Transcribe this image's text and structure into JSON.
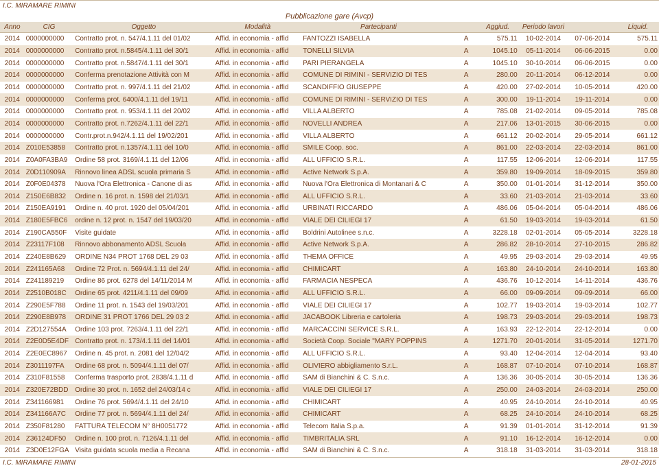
{
  "header": {
    "org": "I.C. MIRAMARE RIMINI",
    "title": "Pubblicazione gare (Avcp)"
  },
  "footer": {
    "left": "I.C. MIRAMARE RIMINI",
    "right": "28-01-2015"
  },
  "cols": [
    {
      "label": "Anno",
      "w": "3.5%",
      "align": "center"
    },
    {
      "label": "CIG",
      "w": "7%",
      "align": "left"
    },
    {
      "label": "Oggetto",
      "w": "20%",
      "align": "left"
    },
    {
      "label": "Modalità",
      "w": "12.5%",
      "align": "left"
    },
    {
      "label": "Partecipanti",
      "w": "22%",
      "align": "left"
    },
    {
      "label": "",
      "w": "3%",
      "align": "center"
    },
    {
      "label": "Aggiud.",
      "w": "6%",
      "align": "right"
    },
    {
      "label": "Periodo lavori",
      "w": "7%",
      "align": "center"
    },
    {
      "label": "",
      "w": "7%",
      "align": "center"
    },
    {
      "label": "Liquid.",
      "w": "6%",
      "align": "right"
    }
  ],
  "rows": [
    [
      "2014",
      "0000000000",
      "Contratto prot. n. 547/4.1.11 del 01/02",
      "Affid. in economia - affid",
      "FANTOZZI ISABELLA",
      "A",
      "575.11",
      "10-02-2014",
      "07-06-2014",
      "575.11"
    ],
    [
      "2014",
      "0000000000",
      "Contratto prot. n.5845/4.1.11 del 30/1",
      "Affid. in economia - affid",
      "TONELLI SILVIA",
      "A",
      "1045.10",
      "05-11-2014",
      "06-06-2015",
      "0.00"
    ],
    [
      "2014",
      "0000000000",
      "Contratto prot. n.5847/4.1.11 del 30/1",
      "Affid. in economia - affid",
      "PARI PIERANGELA",
      "A",
      "1045.10",
      "30-10-2014",
      "06-06-2015",
      "0.00"
    ],
    [
      "2014",
      "0000000000",
      "Conferma prenotazione Attività con M",
      "Affid. in economia - affid",
      "COMUNE DI RIMINI - SERVIZIO DI TES",
      "A",
      "280.00",
      "20-11-2014",
      "06-12-2014",
      "0.00"
    ],
    [
      "2014",
      "0000000000",
      "Contratto prot. n. 997/4.1.11 del 21/02",
      "Affid. in economia - affid",
      "SCANDIFFIO GIUSEPPE",
      "A",
      "420.00",
      "27-02-2014",
      "10-05-2014",
      "420.00"
    ],
    [
      "2014",
      "0000000000",
      "Conferma prot. 6400/4.1.11 del 19/11",
      "Affid. in economia - affid",
      "COMUNE DI RIMINI - SERVIZIO DI TES",
      "A",
      "300.00",
      "19-11-2014",
      "19-11-2014",
      "0.00"
    ],
    [
      "2014",
      "0000000000",
      "Contratto prot. n. 953/4.1.11 del 20/02",
      "Affid. in economia - affid",
      "VILLA ALBERTO",
      "A",
      "785.08",
      "21-02-2014",
      "09-05-2014",
      "785.08"
    ],
    [
      "2014",
      "0000000000",
      "Contratto prot. n.7262/4.1.11 del 22/1",
      "Affid. in economia - affid",
      "NOVELLI ANDREA",
      "A",
      "217.06",
      "13-01-2015",
      "30-06-2015",
      "0.00"
    ],
    [
      "2014",
      "0000000000",
      "Contr.prot.n.942/4.1.11 del 19/02/201",
      "Affid. in economia - affid",
      "VILLA ALBERTO",
      "A",
      "661.12",
      "20-02-2014",
      "29-05-2014",
      "661.12"
    ],
    [
      "2014",
      "Z010E53858",
      "Contratto prot. n.1357/4.1.11 del 10/0",
      "Affid. in economia - affid",
      "SMILE Coop. soc.",
      "A",
      "861.00",
      "22-03-2014",
      "22-03-2014",
      "861.00"
    ],
    [
      "2014",
      "Z0A0FA3BA9",
      "Ordine 58 prot. 3169/4.1.11 del 12/06",
      "Affid. in economia - affid",
      "ALL UFFICIO S.R.L.",
      "A",
      "117.55",
      "12-06-2014",
      "12-06-2014",
      "117.55"
    ],
    [
      "2014",
      "Z0D110909A",
      "Rinnovo linea ADSL scuola primaria S",
      "Affid. in economia - affid",
      "Active Network S.p.A.",
      "A",
      "359.80",
      "19-09-2014",
      "18-09-2015",
      "359.80"
    ],
    [
      "2014",
      "Z0F0E04378",
      "Nuova l'Ora Elettronica - Canone di as",
      "Affid. in economia - affid",
      "Nuova l'Ora Elettronica di Montanari & C",
      "A",
      "350.00",
      "01-01-2014",
      "31-12-2014",
      "350.00"
    ],
    [
      "2014",
      "Z150E6B832",
      "Ordine n. 16 prot. n. 1598 del 21/03/1",
      "Affid. in economia - affid",
      "ALL UFFICIO S.R.L.",
      "A",
      "33.60",
      "21-03-2014",
      "21-03-2014",
      "33.60"
    ],
    [
      "2014",
      "Z150EA9191",
      "Ordine n. 40 prot. 1920 del 05/04/201",
      "Affid. in economia - affid",
      "URBINATI RICCARDO",
      "A",
      "486.06",
      "05-04-2014",
      "05-04-2014",
      "486.06"
    ],
    [
      "2014",
      "Z180E5FBC6",
      "ordine n. 12 prot. n. 1547 del 19/03/20",
      "Affid. in economia - affid",
      "VIALE DEI CILIEGI 17",
      "A",
      "61.50",
      "19-03-2014",
      "19-03-2014",
      "61.50"
    ],
    [
      "2014",
      "Z190CA550F",
      "Visite guidate",
      "Affid. in economia - affid",
      "Boldrini Autolinee s.n.c.",
      "A",
      "3228.18",
      "02-01-2014",
      "05-05-2014",
      "3228.18"
    ],
    [
      "2014",
      "Z23117F108",
      "Rinnovo abbonamento ADSL Scuola",
      "Affid. in economia - affid",
      "Active Network S.p.A.",
      "A",
      "286.82",
      "28-10-2014",
      "27-10-2015",
      "286.82"
    ],
    [
      "2014",
      "Z240E8B629",
      "ORDINE N34 PROT 1768 DEL 29 03",
      "Affid. in economia - affid",
      "THEMA OFFICE",
      "A",
      "49.95",
      "29-03-2014",
      "29-03-2014",
      "49.95"
    ],
    [
      "2014",
      "Z241165A68",
      "Ordine 72 Prot. n. 5694/4.1.11 del 24/",
      "Affid. in economia - affid",
      "CHIMICART",
      "A",
      "163.80",
      "24-10-2014",
      "24-10-2014",
      "163.80"
    ],
    [
      "2014",
      "Z241189219",
      "Ordine 86 prot. 6278 del 14/11/2014 M",
      "Affid. in economia - affid",
      "FARMACIA NESPECA",
      "A",
      "436.76",
      "10-12-2014",
      "14-11-2014",
      "436.76"
    ],
    [
      "2014",
      "Z2510B018C",
      "Ordine 65 prot. 4211/4.1.11 del 09/09",
      "Affid. in economia - affid",
      "ALL UFFICIO S.R.L.",
      "A",
      "66.00",
      "09-09-2014",
      "09-09-2014",
      "66.00"
    ],
    [
      "2014",
      "Z290E5F788",
      "Ordine 11 prot. n. 1543 del 19/03/201",
      "Affid. in economia - affid",
      "VIALE DEI CILIEGI 17",
      "A",
      "102.77",
      "19-03-2014",
      "19-03-2014",
      "102.77"
    ],
    [
      "2014",
      "Z290E8B978",
      "ORDINE 31 PROT 1766 DEL 29 03 2",
      "Affid. in economia - affid",
      "JACABOOK Libreria e cartoleria",
      "A",
      "198.73",
      "29-03-2014",
      "29-03-2014",
      "198.73"
    ],
    [
      "2014",
      "Z2D127554A",
      "Ordine 103 prot. 7263/4.1.11 del 22/1",
      "Affid. in economia - affid",
      "MARCACCINI SERVICE S.R.L.",
      "A",
      "163.93",
      "22-12-2014",
      "22-12-2014",
      "0.00"
    ],
    [
      "2014",
      "Z2E0D5E4DF",
      "Contratto prot. n. 173/4.1.11 del 14/01",
      "Affid. in economia - affid",
      "Società Coop. Sociale \"MARY POPPINS",
      "A",
      "1271.70",
      "20-01-2014",
      "31-05-2014",
      "1271.70"
    ],
    [
      "2014",
      "Z2E0EC8967",
      "Ordine n. 45 prot. n. 2081 del 12/04/2",
      "Affid. in economia - affid",
      "ALL UFFICIO S.R.L.",
      "A",
      "93.40",
      "12-04-2014",
      "12-04-2014",
      "93.40"
    ],
    [
      "2014",
      "Z3011197FA",
      "Ordine 68 prot. n. 5094/4.1.11 del 07/",
      "Affid. in economia - affid",
      "OLIVIERO abbigliamento S.r.L.",
      "A",
      "168.87",
      "07-10-2014",
      "07-10-2014",
      "168.87"
    ],
    [
      "2014",
      "Z310F81558",
      "Conferma trasporto prot. 2838/4.1.11 d",
      "Affid. in economia - affid",
      "SAM di Bianchini & C. S.n.c.",
      "A",
      "136.36",
      "30-05-2014",
      "30-05-2014",
      "136.36"
    ],
    [
      "2014",
      "Z320E72BDD",
      "Ordine 30 prot. n. 1652 del 24/03/14 c",
      "Affid. in economia - affid",
      "VIALE DEI CILIEGI 17",
      "A",
      "250.00",
      "24-03-2014",
      "24-03-2014",
      "250.00"
    ],
    [
      "2014",
      "Z341166981",
      "Ordine 76 prot. 5694/4.1.11 del 24/10",
      "Affid. in economia - affid",
      "CHIMICART",
      "A",
      "40.95",
      "24-10-2014",
      "24-10-2014",
      "40.95"
    ],
    [
      "2014",
      "Z341166A7C",
      "Ordine 77 prot. n. 5694/4.1.11 del 24/",
      "Affid. in economia - affid",
      "CHIMICART",
      "A",
      "68.25",
      "24-10-2014",
      "24-10-2014",
      "68.25"
    ],
    [
      "2014",
      "Z350F81280",
      "FATTURA TELECOM N° 8H0051772",
      "Affid. in economia - affid",
      "Telecom Italia S.p.a.",
      "A",
      "91.39",
      "01-01-2014",
      "31-12-2014",
      "91.39"
    ],
    [
      "2014",
      "Z36124DF50",
      "Ordine n. 100 prot. n. 7126/4.1.11 del",
      "Affid. in economia - affid",
      "TIMBRITALIA SRL",
      "A",
      "91.10",
      "16-12-2014",
      "16-12-2014",
      "0.00"
    ],
    [
      "2014",
      "Z3D0E12FGA",
      "Visita guidata scuola media a Recana",
      "Affid. in economia - affid",
      "SAM di Bianchini & C. S.n.c.",
      "A",
      "318.18",
      "31-03-2014",
      "31-03-2014",
      "318.18"
    ]
  ]
}
